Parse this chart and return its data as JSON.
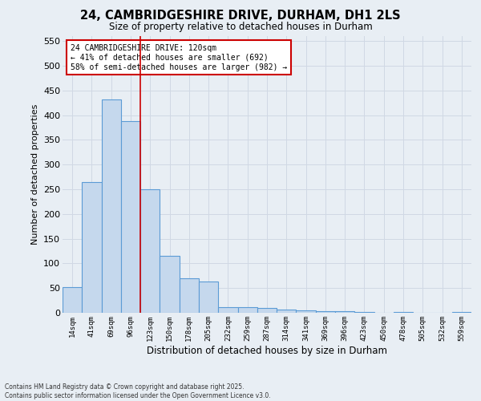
{
  "title1": "24, CAMBRIDGESHIRE DRIVE, DURHAM, DH1 2LS",
  "title2": "Size of property relative to detached houses in Durham",
  "xlabel": "Distribution of detached houses by size in Durham",
  "ylabel": "Number of detached properties",
  "categories": [
    "14sqm",
    "41sqm",
    "69sqm",
    "96sqm",
    "123sqm",
    "150sqm",
    "178sqm",
    "205sqm",
    "232sqm",
    "259sqm",
    "287sqm",
    "314sqm",
    "341sqm",
    "369sqm",
    "396sqm",
    "423sqm",
    "450sqm",
    "478sqm",
    "505sqm",
    "532sqm",
    "559sqm"
  ],
  "values": [
    52,
    265,
    432,
    388,
    250,
    116,
    70,
    63,
    12,
    12,
    9,
    6,
    5,
    4,
    4,
    1,
    0,
    1,
    0,
    0,
    1
  ],
  "bar_color": "#c5d8ed",
  "bar_edge_color": "#5b9bd5",
  "grid_color": "#d0d8e4",
  "background_color": "#e8eef4",
  "vline_x": 3.5,
  "vline_color": "#cc0000",
  "annotation_text": "24 CAMBRIDGESHIRE DRIVE: 120sqm\n← 41% of detached houses are smaller (692)\n58% of semi-detached houses are larger (982) →",
  "annotation_box_color": "#ffffff",
  "annotation_edge_color": "#cc0000",
  "ylim": [
    0,
    560
  ],
  "yticks": [
    0,
    50,
    100,
    150,
    200,
    250,
    300,
    350,
    400,
    450,
    500,
    550
  ],
  "footer1": "Contains HM Land Registry data © Crown copyright and database right 2025.",
  "footer2": "Contains public sector information licensed under the Open Government Licence v3.0."
}
